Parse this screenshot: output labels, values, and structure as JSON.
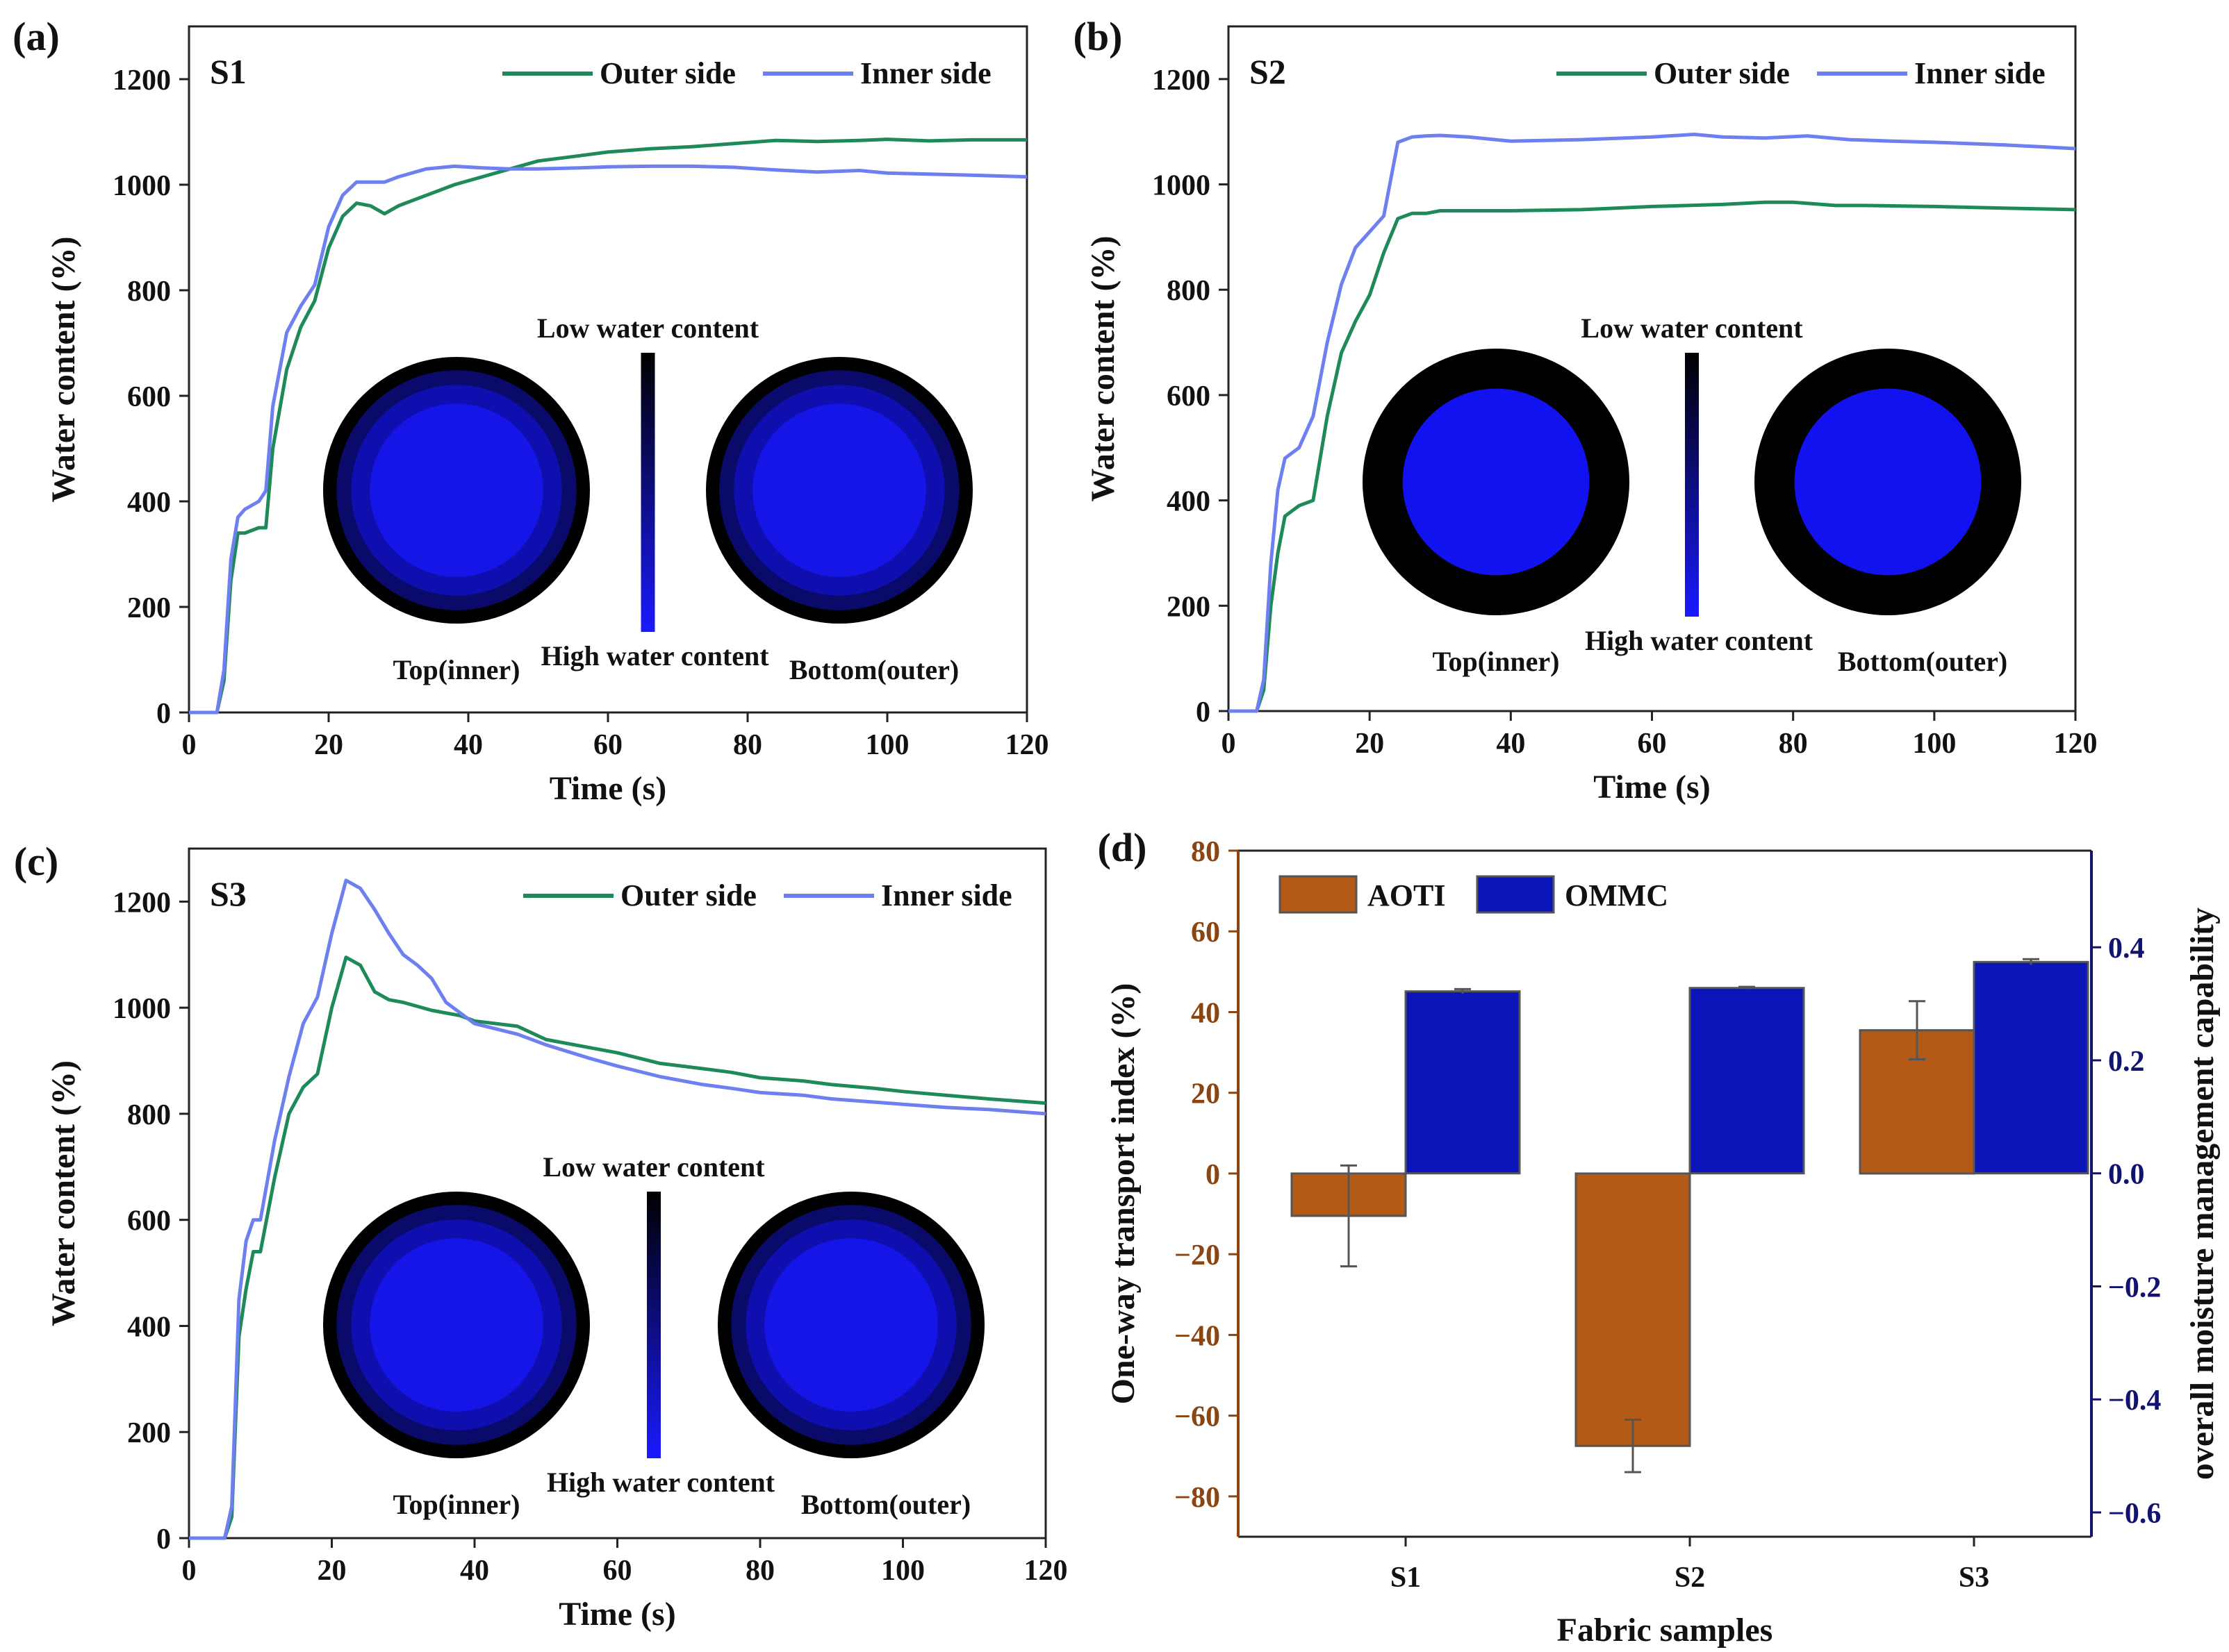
{
  "figure": {
    "colors": {
      "outer_line": "#1e8a5a",
      "inner_line": "#6e7ff0",
      "aoti_bar": "#b35a16",
      "ommc_bar": "#0b14b8",
      "left_axis_d": "#8a4513",
      "right_axis_d": "#121270",
      "map_low": "#000000",
      "map_high": "#1a1aff"
    }
  },
  "chart_data": [
    {
      "type": "line",
      "panel_label": "(a)",
      "sample": "S1",
      "xlabel": "Time (s)",
      "ylabel": "Water content (%)",
      "xlim": [
        0,
        120
      ],
      "ylim": [
        0,
        1300
      ],
      "xticks": [
        0,
        20,
        40,
        60,
        80,
        100,
        120
      ],
      "yticks": [
        0,
        200,
        400,
        600,
        800,
        1000,
        1200
      ],
      "legend": [
        "Outer side",
        "Inner side"
      ],
      "series": [
        {
          "name": "Outer side",
          "x": [
            0,
            4,
            5,
            6,
            7,
            8,
            10,
            11,
            12,
            14,
            16,
            18,
            20,
            22,
            24,
            26,
            28,
            30,
            34,
            38,
            42,
            46,
            50,
            56,
            60,
            66,
            72,
            78,
            84,
            90,
            96,
            100,
            106,
            112,
            120
          ],
          "y": [
            0,
            0,
            60,
            250,
            340,
            340,
            350,
            350,
            500,
            650,
            730,
            780,
            880,
            940,
            965,
            960,
            945,
            960,
            980,
            1000,
            1015,
            1030,
            1045,
            1055,
            1062,
            1068,
            1072,
            1078,
            1084,
            1082,
            1084,
            1086,
            1083,
            1085,
            1085
          ]
        },
        {
          "name": "Inner side",
          "x": [
            0,
            4,
            5,
            6,
            7,
            8,
            10,
            11,
            12,
            14,
            16,
            18,
            20,
            22,
            24,
            26,
            28,
            30,
            34,
            38,
            42,
            46,
            50,
            56,
            60,
            66,
            72,
            78,
            84,
            90,
            96,
            100,
            106,
            112,
            120
          ],
          "y": [
            0,
            0,
            80,
            290,
            370,
            385,
            400,
            420,
            580,
            720,
            770,
            810,
            920,
            980,
            1005,
            1005,
            1005,
            1015,
            1030,
            1035,
            1032,
            1030,
            1030,
            1032,
            1034,
            1035,
            1035,
            1033,
            1028,
            1024,
            1027,
            1022,
            1020,
            1018,
            1015
          ]
        }
      ],
      "inset": {
        "low_label": "Low water content",
        "high_label": "High water content",
        "left_caption": "Top(inner)",
        "right_caption": "Bottom(outer)"
      }
    },
    {
      "type": "line",
      "panel_label": "(b)",
      "sample": "S2",
      "xlabel": "Time (s)",
      "ylabel": "Water content (%)",
      "xlim": [
        0,
        120
      ],
      "ylim": [
        0,
        1300
      ],
      "xticks": [
        0,
        20,
        40,
        60,
        80,
        100,
        120
      ],
      "yticks": [
        0,
        200,
        400,
        600,
        800,
        1000,
        1200
      ],
      "legend": [
        "Outer side",
        "Inner side"
      ],
      "series": [
        {
          "name": "Outer side",
          "x": [
            0,
            4,
            5,
            6,
            7,
            8,
            10,
            12,
            14,
            16,
            18,
            20,
            22,
            24,
            26,
            28,
            30,
            34,
            40,
            50,
            60,
            70,
            76,
            80,
            86,
            90,
            100,
            110,
            120
          ],
          "y": [
            0,
            0,
            40,
            200,
            300,
            370,
            390,
            400,
            560,
            680,
            740,
            790,
            870,
            935,
            945,
            945,
            950,
            950,
            950,
            952,
            958,
            962,
            966,
            966,
            960,
            960,
            958,
            955,
            952
          ]
        },
        {
          "name": "Inner side",
          "x": [
            0,
            4,
            5,
            6,
            7,
            8,
            10,
            12,
            14,
            16,
            18,
            20,
            22,
            24,
            26,
            28,
            30,
            34,
            40,
            50,
            60,
            66,
            70,
            76,
            82,
            88,
            94,
            100,
            110,
            120
          ],
          "y": [
            0,
            0,
            60,
            280,
            420,
            480,
            500,
            560,
            700,
            810,
            880,
            910,
            940,
            1080,
            1090,
            1092,
            1093,
            1090,
            1082,
            1085,
            1090,
            1095,
            1090,
            1088,
            1092,
            1085,
            1082,
            1080,
            1075,
            1068
          ]
        }
      ],
      "inset": {
        "low_label": "Low water content",
        "high_label": "High water content",
        "left_caption": "Top(inner)",
        "right_caption": "Bottom(outer)"
      }
    },
    {
      "type": "line",
      "panel_label": "(c)",
      "sample": "S3",
      "xlabel": "Time (s)",
      "ylabel": "Water content (%)",
      "xlim": [
        0,
        120
      ],
      "ylim": [
        0,
        1300
      ],
      "xticks": [
        0,
        20,
        40,
        60,
        80,
        100,
        120
      ],
      "yticks": [
        0,
        200,
        400,
        600,
        800,
        1000,
        1200
      ],
      "legend": [
        "Outer side",
        "Inner side"
      ],
      "series": [
        {
          "name": "Outer side",
          "x": [
            0,
            5,
            6,
            7,
            8,
            9,
            10,
            12,
            14,
            16,
            18,
            20,
            22,
            24,
            26,
            28,
            30,
            34,
            38,
            40,
            46,
            50,
            56,
            60,
            66,
            72,
            76,
            80,
            86,
            90,
            96,
            100,
            106,
            112,
            120
          ],
          "y": [
            0,
            0,
            40,
            380,
            470,
            540,
            540,
            680,
            800,
            850,
            875,
            1000,
            1095,
            1080,
            1030,
            1015,
            1010,
            995,
            985,
            975,
            965,
            940,
            925,
            915,
            895,
            885,
            878,
            868,
            862,
            855,
            848,
            842,
            835,
            828,
            820
          ]
        },
        {
          "name": "Inner side",
          "x": [
            0,
            5,
            6,
            7,
            8,
            9,
            10,
            12,
            14,
            16,
            18,
            20,
            22,
            24,
            26,
            28,
            30,
            32,
            34,
            36,
            38,
            40,
            46,
            50,
            56,
            60,
            66,
            72,
            76,
            80,
            86,
            90,
            96,
            100,
            106,
            112,
            120
          ],
          "y": [
            0,
            0,
            60,
            450,
            560,
            600,
            600,
            750,
            870,
            970,
            1020,
            1140,
            1240,
            1225,
            1185,
            1140,
            1100,
            1080,
            1055,
            1010,
            990,
            970,
            950,
            930,
            905,
            890,
            870,
            855,
            848,
            840,
            835,
            828,
            822,
            818,
            812,
            808,
            800
          ]
        }
      ],
      "inset": {
        "low_label": "Low water content",
        "high_label": "High water content",
        "left_caption": "Top(inner)",
        "right_caption": "Bottom(outer)"
      }
    },
    {
      "type": "bar",
      "panel_label": "(d)",
      "categories": [
        "S1",
        "S2",
        "S3"
      ],
      "xlabel": "Fabric samples",
      "ylabel_left": "One-way transport index (%)",
      "ylabel_right": "overall moisture management capability",
      "ylim_left": [
        -90,
        80
      ],
      "yticks_left": [
        -80,
        -60,
        -40,
        -20,
        0,
        20,
        40,
        60,
        80
      ],
      "yticklabels_left": [
        "−80",
        "−60",
        "−40",
        "−20",
        "0",
        "20",
        "40",
        "60",
        "80"
      ],
      "ylim_right": [
        -0.643,
        0.571
      ],
      "yticks_right": [
        -0.6,
        -0.4,
        -0.2,
        0.0,
        0.2,
        0.4
      ],
      "yticklabels_right": [
        "−0.6",
        "−0.4",
        "−0.2",
        "0.0",
        "0.2",
        "0.4"
      ],
      "legend": [
        "AOTI",
        "OMMC"
      ],
      "series": [
        {
          "name": "AOTI",
          "axis": "left",
          "values": [
            -10.5,
            -67.5,
            35.5
          ],
          "errors": [
            12.5,
            6.5,
            7.2
          ]
        },
        {
          "name": "OMMC",
          "axis": "right",
          "values": [
            0.322,
            0.328,
            0.374
          ],
          "errors": [
            0.004,
            0.002,
            0.005
          ]
        }
      ]
    }
  ]
}
